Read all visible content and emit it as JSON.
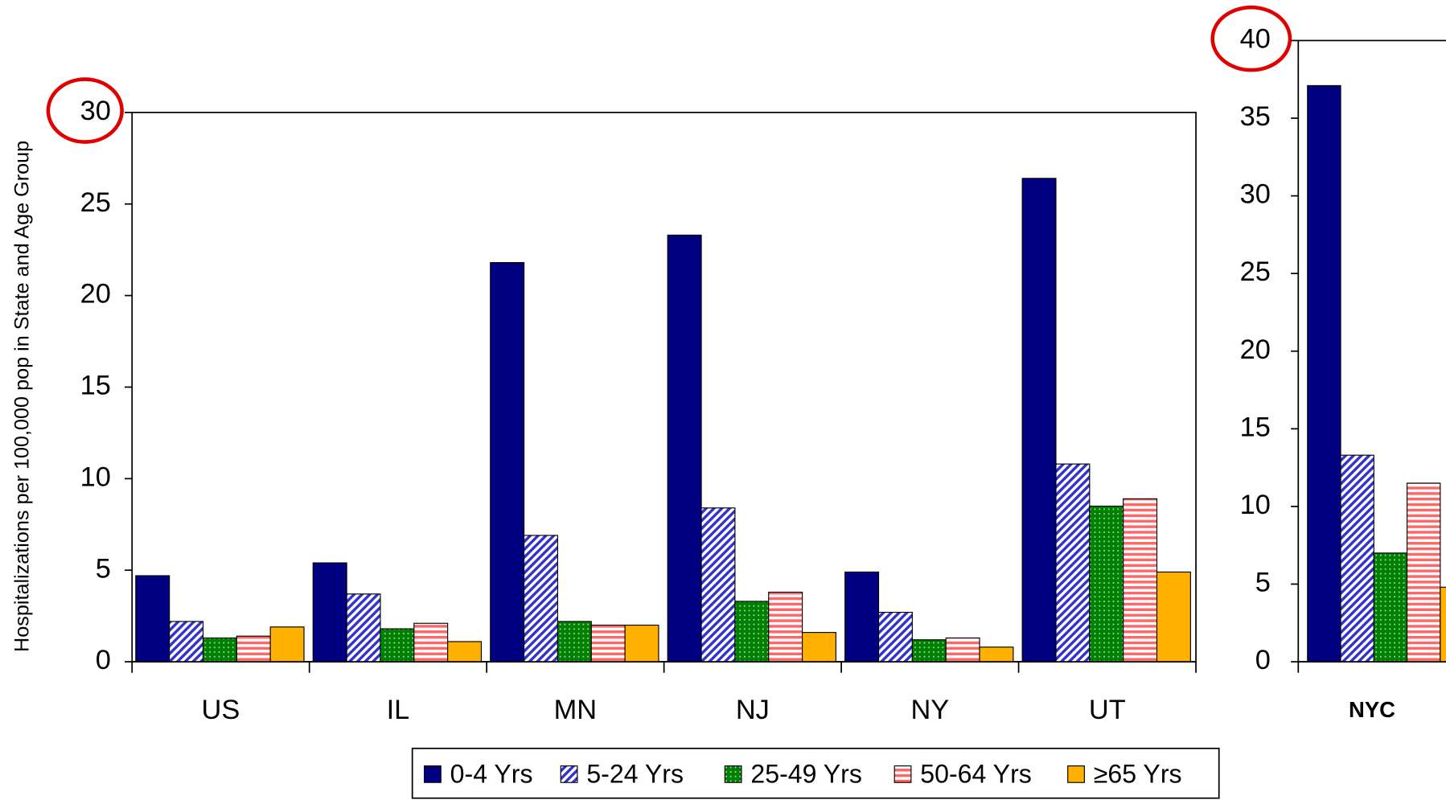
{
  "chart_data": [
    {
      "type": "bar",
      "y_label": "Hospitalizations per 100,000 pop in State and Age Group",
      "categories": [
        "US",
        "IL",
        "MN",
        "NJ",
        "NY",
        "UT"
      ],
      "series": [
        {
          "name": "0-4 Yrs",
          "color": "#000080",
          "values": [
            4.7,
            5.4,
            21.8,
            23.3,
            4.9,
            26.4
          ]
        },
        {
          "name": "5-24 Yrs",
          "color": "#3333cc",
          "values": [
            2.2,
            3.7,
            6.9,
            8.4,
            2.7,
            10.8
          ]
        },
        {
          "name": "25-49 Yrs",
          "color": "#008000",
          "values": [
            1.3,
            1.8,
            2.2,
            3.3,
            1.2,
            8.5
          ]
        },
        {
          "name": "50-64 Yrs",
          "color": "#ff6666",
          "values": [
            1.4,
            2.1,
            2.0,
            3.8,
            1.3,
            8.9
          ]
        },
        {
          "name": "≥65 Yrs",
          "color": "#ffb000",
          "values": [
            1.9,
            1.1,
            2.0,
            1.6,
            0.8,
            4.9
          ]
        }
      ],
      "ylim": [
        0,
        30
      ],
      "yticks": [
        0,
        5,
        10,
        15,
        20,
        25,
        30
      ]
    },
    {
      "type": "bar",
      "categories": [
        "NYC"
      ],
      "series": [
        {
          "color": "#000080",
          "values": [
            37.1
          ]
        },
        {
          "color": "#3333cc",
          "values": [
            13.3
          ]
        },
        {
          "color": "#008000",
          "values": [
            7.0
          ]
        },
        {
          "color": "#ff6666",
          "values": [
            11.5
          ]
        },
        {
          "color": "#ffb000",
          "values": [
            4.8
          ]
        }
      ],
      "ylim": [
        0,
        40
      ],
      "yticks": [
        0,
        5,
        10,
        15,
        20,
        25,
        30,
        35,
        40
      ]
    }
  ]
}
